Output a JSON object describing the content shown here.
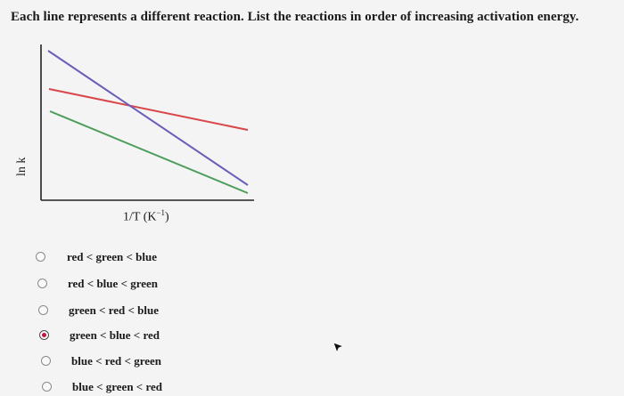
{
  "question": "Each line represents a different reaction. List the reactions in order of increasing activation energy.",
  "plot": {
    "ylabel": "ln k",
    "xlabel_main": "1/T (K",
    "xlabel_exp": "−1",
    "xlabel_close": ")",
    "line_colors": {
      "red": "#d9474b",
      "blue": "#6a5fb8",
      "green": "#4c9e5a"
    }
  },
  "options": [
    {
      "label": "red < green < blue",
      "selected": false
    },
    {
      "label": "red < blue < green",
      "selected": false
    },
    {
      "label": "green < red < blue",
      "selected": false
    },
    {
      "label": "green < blue < red",
      "selected": true
    },
    {
      "label": "blue < red < green",
      "selected": false
    },
    {
      "label": "blue < green < red",
      "selected": false
    }
  ],
  "accent_color": "#c5143f"
}
